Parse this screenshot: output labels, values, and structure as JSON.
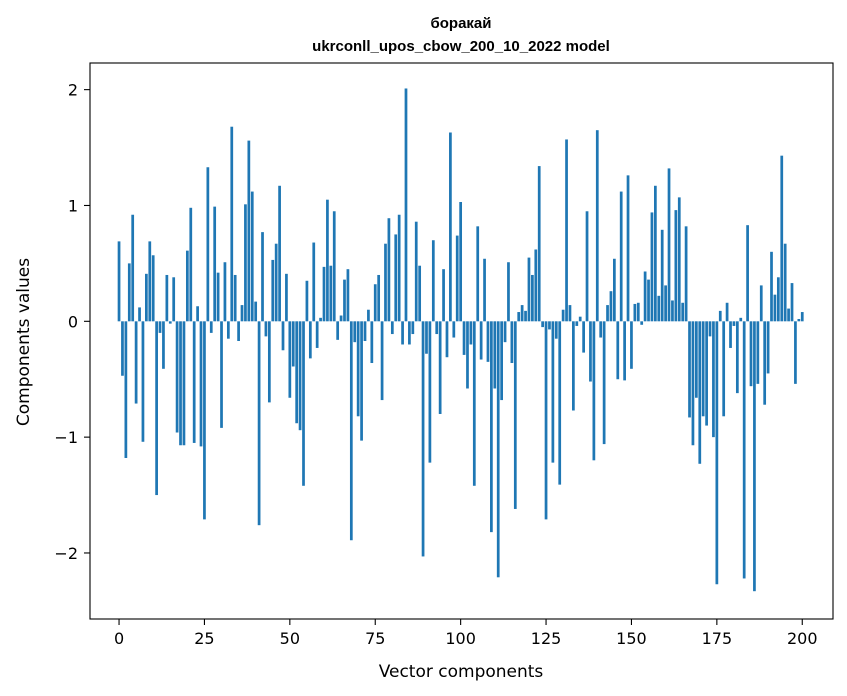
{
  "chart_data": {
    "type": "bar",
    "title_line1": "боракай",
    "title_line2": "ukrconll_upos_cbow_200_10_2022 model",
    "xlabel": "Vector components",
    "ylabel": "Components values",
    "xlim": [
      -8.5,
      209
    ],
    "ylim": [
      -2.57,
      2.23
    ],
    "xticks": [
      0,
      25,
      50,
      75,
      100,
      125,
      150,
      175,
      200
    ],
    "xtick_labels": [
      "0",
      "25",
      "50",
      "75",
      "100",
      "125",
      "150",
      "175",
      "200"
    ],
    "yticks": [
      -2,
      -1,
      0,
      1,
      2
    ],
    "ytick_labels": [
      "−2",
      "−1",
      "0",
      "1",
      "2"
    ],
    "bar_color": "#1f77b4",
    "grid": false,
    "values": [
      0.69,
      -0.47,
      -1.18,
      0.5,
      0.92,
      -0.71,
      0.12,
      -1.04,
      0.41,
      0.69,
      0.57,
      -1.5,
      -0.1,
      -0.41,
      0.4,
      -0.02,
      0.38,
      -0.96,
      -1.07,
      -1.07,
      0.61,
      0.98,
      -1.05,
      0.13,
      -1.08,
      -1.71,
      1.33,
      -0.1,
      0.99,
      0.42,
      -0.92,
      0.51,
      -0.15,
      1.68,
      0.4,
      -0.17,
      0.14,
      1.01,
      1.56,
      1.12,
      0.17,
      -1.76,
      0.77,
      -0.13,
      -0.7,
      0.53,
      0.67,
      1.17,
      -0.25,
      0.41,
      -0.66,
      -0.39,
      -0.88,
      -0.94,
      -1.42,
      0.35,
      -0.32,
      0.68,
      -0.23,
      0.03,
      0.47,
      1.05,
      0.48,
      0.95,
      -0.16,
      0.05,
      0.36,
      0.45,
      -1.89,
      -0.18,
      -0.82,
      -1.03,
      -0.17,
      0.1,
      -0.36,
      0.32,
      0.4,
      -0.68,
      0.67,
      0.89,
      -0.11,
      0.75,
      0.92,
      -0.2,
      2.01,
      -0.2,
      -0.11,
      0.86,
      0.48,
      -2.03,
      -0.28,
      -1.22,
      0.7,
      -0.11,
      -0.8,
      0.45,
      -0.31,
      1.63,
      -0.14,
      0.74,
      1.03,
      -0.29,
      -0.58,
      -0.2,
      -1.42,
      0.82,
      -0.33,
      0.54,
      -0.35,
      -1.82,
      -0.58,
      -2.21,
      -0.68,
      -0.18,
      0.51,
      -0.36,
      -1.62,
      0.08,
      0.14,
      0.09,
      0.55,
      0.4,
      0.62,
      1.34,
      -0.05,
      -1.71,
      -0.07,
      -1.22,
      -0.15,
      -1.41,
      0.1,
      1.57,
      0.14,
      -0.77,
      -0.04,
      0.04,
      -0.27,
      0.95,
      -0.52,
      -1.2,
      1.65,
      -0.14,
      -1.06,
      0.14,
      0.26,
      0.54,
      -0.5,
      1.12,
      -0.51,
      1.26,
      -0.41,
      0.15,
      0.16,
      -0.03,
      0.43,
      0.36,
      0.94,
      1.17,
      0.22,
      0.79,
      0.31,
      1.32,
      0.18,
      0.96,
      1.07,
      0.16,
      0.82,
      -0.83,
      -1.07,
      -0.66,
      -1.23,
      -0.82,
      -0.9,
      -0.13,
      -1.0,
      -2.27,
      0.09,
      -0.82,
      0.16,
      -0.23,
      -0.04,
      -0.62,
      0.03,
      -2.22,
      0.83,
      -0.56,
      -2.33,
      -0.54,
      0.31,
      -0.72,
      -0.45,
      0.6,
      0.23,
      0.38,
      1.43,
      0.67,
      0.11,
      0.33,
      -0.54,
      0.02,
      0.08
    ]
  }
}
